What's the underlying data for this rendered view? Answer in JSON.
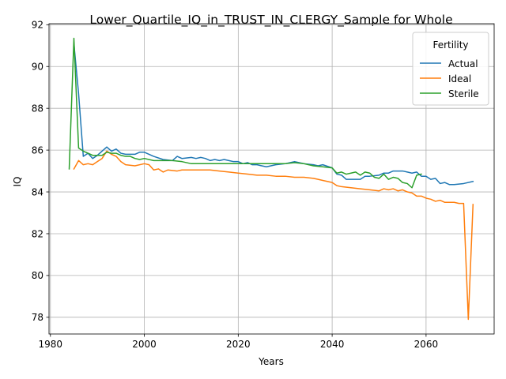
{
  "chart_data": {
    "type": "line",
    "title": "Lower_Quartile_IQ_in_TRUST_IN_CLERGY_Sample for Whole",
    "xlabel": "Years",
    "ylabel": "IQ",
    "xlim": [
      1979.7,
      2074.5
    ],
    "ylim": [
      77.2,
      92.05
    ],
    "xticks": [
      1980,
      2000,
      2020,
      2040,
      2060
    ],
    "yticks": [
      78,
      80,
      82,
      84,
      86,
      88,
      90,
      92
    ],
    "grid": true,
    "legend": {
      "title": "Fertility",
      "position": "top-right"
    },
    "series": [
      {
        "name": "Actual",
        "color": "#1f77b4",
        "x": [
          1985,
          1986,
          1987,
          1988,
          1989,
          1990,
          1991,
          1992,
          1993,
          1994,
          1995,
          1996,
          1997,
          1998,
          1999,
          2000,
          2002,
          2004,
          2006,
          2007,
          2008,
          2010,
          2011,
          2012,
          2013,
          2014,
          2015,
          2016,
          2017,
          2018,
          2019,
          2020,
          2021,
          2022,
          2023,
          2024,
          2025,
          2026,
          2028,
          2030,
          2032,
          2034,
          2036,
          2037,
          2038,
          2040,
          2041,
          2042,
          2043,
          2044,
          2046,
          2047,
          2048,
          2050,
          2051,
          2052,
          2053,
          2054,
          2055,
          2056,
          2057,
          2058,
          2059,
          2060,
          2061,
          2062,
          2063,
          2064,
          2065,
          2066,
          2068,
          2070
        ],
        "y": [
          91.1,
          88.7,
          85.7,
          85.85,
          85.6,
          85.75,
          85.95,
          86.15,
          85.95,
          86.05,
          85.85,
          85.8,
          85.8,
          85.8,
          85.9,
          85.9,
          85.7,
          85.55,
          85.5,
          85.7,
          85.6,
          85.65,
          85.6,
          85.65,
          85.6,
          85.5,
          85.55,
          85.5,
          85.55,
          85.5,
          85.45,
          85.45,
          85.35,
          85.4,
          85.3,
          85.3,
          85.25,
          85.2,
          85.3,
          85.35,
          85.45,
          85.35,
          85.3,
          85.25,
          85.3,
          85.15,
          84.85,
          84.8,
          84.6,
          84.6,
          84.6,
          84.75,
          84.75,
          84.8,
          84.9,
          84.9,
          85.0,
          85.0,
          85.0,
          84.95,
          84.9,
          84.95,
          84.75,
          84.75,
          84.6,
          84.65,
          84.4,
          84.45,
          84.35,
          84.35,
          84.4,
          84.5
        ]
      },
      {
        "name": "Ideal",
        "color": "#ff7f0e",
        "x": [
          1985,
          1986,
          1987,
          1988,
          1989,
          1990,
          1991,
          1992,
          1993,
          1994,
          1995,
          1996,
          1998,
          2000,
          2001,
          2002,
          2003,
          2004,
          2005,
          2007,
          2008,
          2010,
          2012,
          2014,
          2016,
          2018,
          2020,
          2022,
          2024,
          2026,
          2028,
          2030,
          2032,
          2034,
          2036,
          2037,
          2038,
          2040,
          2041,
          2042,
          2044,
          2046,
          2048,
          2050,
          2051,
          2052,
          2053,
          2054,
          2055,
          2056,
          2057,
          2058,
          2059,
          2060,
          2061,
          2062,
          2063,
          2064,
          2065,
          2066,
          2067,
          2068,
          2069,
          2070
        ],
        "y": [
          85.1,
          85.5,
          85.3,
          85.35,
          85.3,
          85.45,
          85.6,
          85.95,
          85.8,
          85.7,
          85.45,
          85.3,
          85.25,
          85.35,
          85.3,
          85.05,
          85.1,
          84.95,
          85.05,
          85.0,
          85.05,
          85.05,
          85.05,
          85.05,
          85.0,
          84.95,
          84.9,
          84.85,
          84.8,
          84.8,
          84.75,
          84.75,
          84.7,
          84.7,
          84.65,
          84.6,
          84.55,
          84.45,
          84.3,
          84.25,
          84.2,
          84.15,
          84.1,
          84.05,
          84.15,
          84.1,
          84.15,
          84.05,
          84.1,
          84.0,
          83.95,
          83.8,
          83.8,
          83.7,
          83.65,
          83.55,
          83.6,
          83.5,
          83.5,
          83.5,
          83.45,
          83.45,
          77.9,
          83.4
        ]
      },
      {
        "name": "Sterile",
        "color": "#2ca02c",
        "x": [
          1984,
          1985,
          1986,
          1987,
          1988,
          1989,
          1990,
          1991,
          1992,
          1993,
          1994,
          1995,
          1996,
          1997,
          1998,
          1999,
          2000,
          2002,
          2004,
          2006,
          2008,
          2010,
          2012,
          2014,
          2016,
          2018,
          2020,
          2022,
          2024,
          2026,
          2028,
          2030,
          2032,
          2034,
          2036,
          2038,
          2040,
          2041,
          2042,
          2043,
          2044,
          2045,
          2046,
          2047,
          2048,
          2049,
          2050,
          2051,
          2052,
          2053,
          2054,
          2055,
          2056,
          2057,
          2058,
          2059
        ],
        "y": [
          85.1,
          91.35,
          86.1,
          85.95,
          85.85,
          85.75,
          85.75,
          85.75,
          85.9,
          85.85,
          85.85,
          85.75,
          85.7,
          85.7,
          85.6,
          85.55,
          85.6,
          85.5,
          85.5,
          85.5,
          85.45,
          85.35,
          85.35,
          85.35,
          85.35,
          85.35,
          85.35,
          85.35,
          85.35,
          85.35,
          85.35,
          85.35,
          85.4,
          85.35,
          85.25,
          85.2,
          85.15,
          84.9,
          84.95,
          84.85,
          84.9,
          84.95,
          84.8,
          84.95,
          84.9,
          84.7,
          84.65,
          84.85,
          84.6,
          84.7,
          84.65,
          84.45,
          84.4,
          84.2,
          84.8,
          84.85
        ]
      }
    ]
  }
}
